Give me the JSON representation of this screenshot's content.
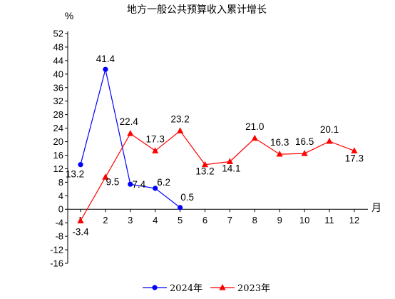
{
  "chart_data": {
    "type": "line",
    "title": "地方一般公共预算收入累计增长",
    "y_unit": "%",
    "x_unit": "月",
    "x": [
      1,
      2,
      3,
      4,
      5,
      6,
      7,
      8,
      9,
      10,
      11,
      12
    ],
    "y_ticks": [
      52,
      48,
      44,
      40,
      36,
      32,
      28,
      24,
      20,
      16,
      12,
      8,
      4,
      0,
      -4,
      -8,
      -12,
      -16
    ],
    "ylim": [
      -16,
      52
    ],
    "grid": false,
    "legend_position": "bottom",
    "series": [
      {
        "name": "2024年",
        "color": "#0000ff",
        "marker": "circle",
        "x": [
          1,
          2,
          3,
          4,
          5
        ],
        "values": [
          13.2,
          41.4,
          7.4,
          6.2,
          0.5
        ],
        "labels": [
          "13.2",
          "41.4",
          "7.4",
          "6.2",
          "0.5"
        ]
      },
      {
        "name": "2023年",
        "color": "#ff0000",
        "marker": "triangle",
        "x": [
          1,
          2,
          3,
          4,
          5,
          6,
          7,
          8,
          9,
          10,
          11,
          12
        ],
        "values": [
          -3.4,
          9.5,
          22.4,
          17.3,
          23.2,
          13.2,
          14.1,
          21.0,
          16.3,
          16.5,
          20.1,
          17.3
        ],
        "labels": [
          "-3.4",
          "9.5",
          "22.4",
          "17.3",
          "23.2",
          "13.2",
          "14.1",
          "21.0",
          "16.3",
          "16.5",
          "20.1",
          "17.3"
        ]
      }
    ]
  }
}
